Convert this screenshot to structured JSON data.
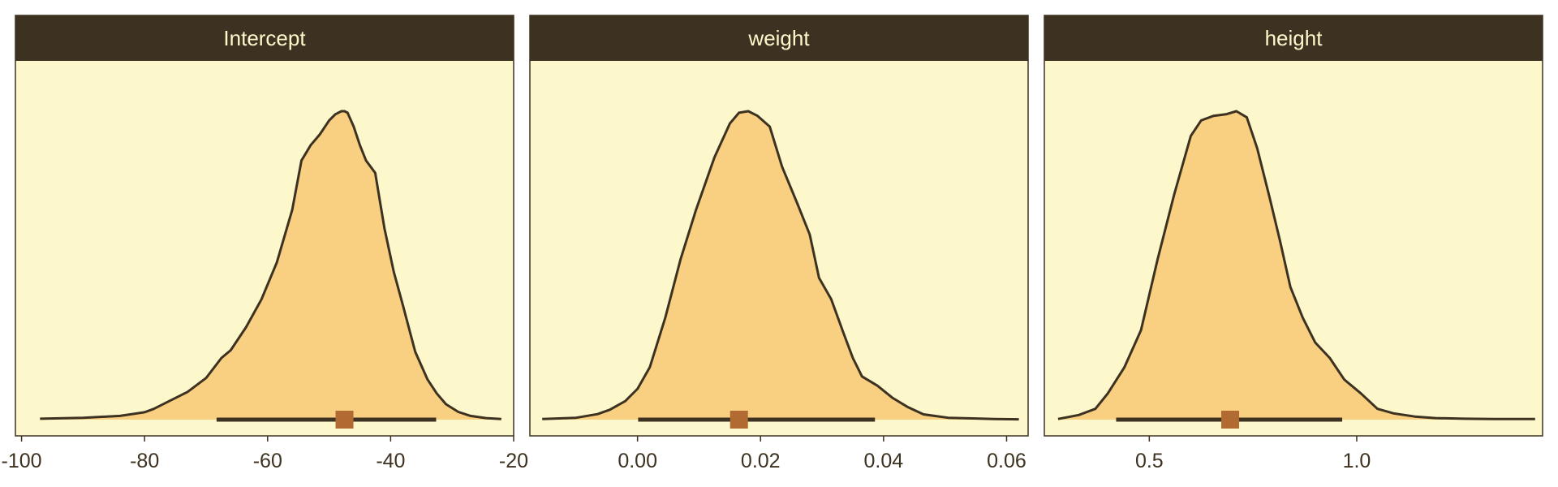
{
  "colors": {
    "panel_bg": "#fdf8cc",
    "strip_bg": "#3d3221",
    "strip_text": "#fdf8cc",
    "density_fill": "#f9d081",
    "density_line": "#3d3221",
    "interval": "#3d3221",
    "point": "#b06a32",
    "axis_text": "#3d3221"
  },
  "chart_data": [
    {
      "type": "area",
      "title": "Intercept",
      "xlim": [
        -101.0,
        -20.0
      ],
      "ticks": [
        -100,
        -80,
        -60,
        -40,
        -20
      ],
      "tick_labels": [
        "-100",
        "-80",
        "-60",
        "-40",
        "-20"
      ],
      "density": {
        "x": [
          -97,
          -90,
          -84,
          -80,
          -78.5,
          -76,
          -73,
          -70,
          -67.5,
          -66,
          -63.5,
          -61,
          -58.5,
          -56,
          -54.5,
          -53,
          -51.5,
          -50,
          -49,
          -48,
          -47.5,
          -47,
          -46,
          -45,
          -44,
          -42.5,
          -41,
          -39.5,
          -38,
          -36,
          -34,
          -32.5,
          -31,
          -29,
          -27,
          -24.5,
          -22
        ],
        "y": [
          0.003,
          0.006,
          0.012,
          0.024,
          0.035,
          0.06,
          0.09,
          0.135,
          0.2,
          0.225,
          0.3,
          0.39,
          0.51,
          0.68,
          0.84,
          0.89,
          0.925,
          0.97,
          0.99,
          1.0,
          1.0,
          0.995,
          0.95,
          0.89,
          0.84,
          0.8,
          0.62,
          0.48,
          0.37,
          0.22,
          0.13,
          0.085,
          0.05,
          0.025,
          0.012,
          0.005,
          0.002
        ]
      },
      "interval": [
        -68.3,
        -32.6
      ],
      "point": -47.5
    },
    {
      "type": "area",
      "title": "weight",
      "xlim": [
        -0.0175,
        0.0635
      ],
      "ticks": [
        0.0,
        0.02,
        0.04,
        0.06
      ],
      "tick_labels": [
        "0.00",
        "0.02",
        "0.04",
        "0.06"
      ],
      "density": {
        "x": [
          -0.0155,
          -0.01,
          -0.0065,
          -0.0045,
          -0.002,
          0.0,
          0.002,
          0.0045,
          0.007,
          0.0095,
          0.0125,
          0.015,
          0.0165,
          0.018,
          0.0195,
          0.0215,
          0.0235,
          0.026,
          0.028,
          0.0295,
          0.0315,
          0.0335,
          0.035,
          0.0365,
          0.039,
          0.0415,
          0.044,
          0.0465,
          0.0505,
          0.0545,
          0.058,
          0.062
        ],
        "y": [
          0.002,
          0.006,
          0.018,
          0.032,
          0.06,
          0.1,
          0.17,
          0.33,
          0.52,
          0.68,
          0.85,
          0.96,
          0.995,
          1.0,
          0.985,
          0.95,
          0.82,
          0.7,
          0.6,
          0.46,
          0.39,
          0.28,
          0.2,
          0.14,
          0.11,
          0.07,
          0.04,
          0.017,
          0.006,
          0.004,
          0.002,
          0.001
        ]
      },
      "interval": [
        0.0001,
        0.0386
      ],
      "point": 0.0165
    },
    {
      "type": "area",
      "title": "height",
      "xlim": [
        0.247,
        1.448
      ],
      "ticks": [
        0.5,
        1.0
      ],
      "tick_labels": [
        "0.5",
        "1.0"
      ],
      "density": {
        "x": [
          0.28,
          0.33,
          0.37,
          0.4,
          0.44,
          0.48,
          0.52,
          0.56,
          0.6,
          0.625,
          0.655,
          0.685,
          0.71,
          0.735,
          0.76,
          0.79,
          0.815,
          0.84,
          0.87,
          0.9,
          0.935,
          0.97,
          1.01,
          1.05,
          1.09,
          1.14,
          1.19,
          1.26,
          1.33,
          1.43
        ],
        "y": [
          0.002,
          0.015,
          0.035,
          0.085,
          0.17,
          0.29,
          0.52,
          0.73,
          0.92,
          0.97,
          0.985,
          0.99,
          1.0,
          0.98,
          0.88,
          0.72,
          0.58,
          0.43,
          0.33,
          0.25,
          0.2,
          0.13,
          0.085,
          0.035,
          0.02,
          0.01,
          0.005,
          0.003,
          0.002,
          0.002
        ]
      },
      "interval": [
        0.42,
        0.965
      ],
      "point": 0.695
    }
  ]
}
